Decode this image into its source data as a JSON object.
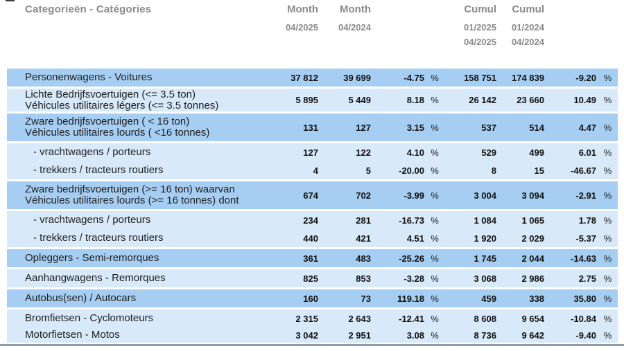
{
  "header": {
    "title": "Categorieën - Catégories",
    "columns": [
      {
        "line1": "Month",
        "line2": "04/2025",
        "line3": ""
      },
      {
        "line1": "Month",
        "line2": "04/2024",
        "line3": ""
      },
      {
        "line1": "Cumul",
        "line2": "01/2025",
        "line3": "04/2025"
      },
      {
        "line1": "Cumul",
        "line2": "01/2024",
        "line3": "04/2024"
      }
    ]
  },
  "table": {
    "percent_sign": "%",
    "rows": [
      {
        "shade": "medium",
        "labels": [
          "Personenwagens - Voitures"
        ],
        "values": [
          "37 812",
          "39 699",
          "-4.75",
          "158 751",
          "174 839",
          "-9.20"
        ]
      },
      {
        "shade": "light",
        "labels": [
          "Lichte Bedrijfsvoertuigen (<= 3.5 ton)",
          "Véhicules utilitaires légers (<= 3.5 tonnes)"
        ],
        "values": [
          "5 895",
          "5 449",
          "8.18",
          "26 142",
          "23 660",
          "10.49"
        ]
      },
      {
        "shade": "medium",
        "labels": [
          "Zware bedrijfsvoertuigen ( < 16 ton)",
          "Véhicules utilitaires lourds ( <16 tonnes)"
        ],
        "values": [
          "131",
          "127",
          "3.15",
          "537",
          "514",
          "4.47"
        ]
      },
      {
        "shade": "light",
        "labels": [
          "- vrachtwagens / porteurs"
        ],
        "values": [
          "127",
          "122",
          "4.10",
          "529",
          "499",
          "6.01"
        ]
      },
      {
        "shade": "light",
        "labels": [
          "- trekkers / tracteurs routiers"
        ],
        "values": [
          "4",
          "5",
          "-20.00",
          "8",
          "15",
          "-46.67"
        ]
      },
      {
        "shade": "medium",
        "labels": [
          "Zware bedrijfsvoertuigen (>= 16 ton) waarvan",
          "Véhicules utilitaires lourds (>= 16 tonnes) dont"
        ],
        "values": [
          "674",
          "702",
          "-3.99",
          "3 004",
          "3 094",
          "-2.91"
        ]
      },
      {
        "shade": "light",
        "labels": [
          "- vrachtwagens / porteurs"
        ],
        "values": [
          "234",
          "281",
          "-16.73",
          "1 084",
          "1 065",
          "1.78"
        ]
      },
      {
        "shade": "light",
        "labels": [
          "- trekkers / tracteurs routiers"
        ],
        "values": [
          "440",
          "421",
          "4.51",
          "1 920",
          "2 029",
          "-5.37"
        ]
      },
      {
        "shade": "medium",
        "labels": [
          "Opleggers - Semi-remorques"
        ],
        "values": [
          "361",
          "483",
          "-25.26",
          "1 745",
          "2 044",
          "-14.63"
        ]
      },
      {
        "shade": "light",
        "labels": [
          "Aanhangwagens - Remorques"
        ],
        "values": [
          "825",
          "853",
          "-3.28",
          "3 068",
          "2 986",
          "2.75"
        ]
      },
      {
        "shade": "medium",
        "labels": [
          "Autobus(sen) / Autocars"
        ],
        "values": [
          "160",
          "73",
          "119.18",
          "459",
          "338",
          "35.80"
        ]
      },
      {
        "shade": "light",
        "labels": [
          "Bromfietsen - Cyclomoteurs"
        ],
        "values": [
          "2 315",
          "2 643",
          "-12.41",
          "8 608",
          "9 654",
          "-10.84"
        ]
      },
      {
        "shade": "light",
        "labels": [
          "Motorfietsen - Motos"
        ],
        "values": [
          "3 042",
          "2 951",
          "3.08",
          "8 736",
          "9 642",
          "-9.40"
        ]
      }
    ]
  },
  "colors": {
    "row_medium": "#a6cef2",
    "row_light": "#d8e9fa",
    "header_text": "#8a8a8a",
    "value_text": "#101010",
    "bottom_line": "#939da5"
  }
}
